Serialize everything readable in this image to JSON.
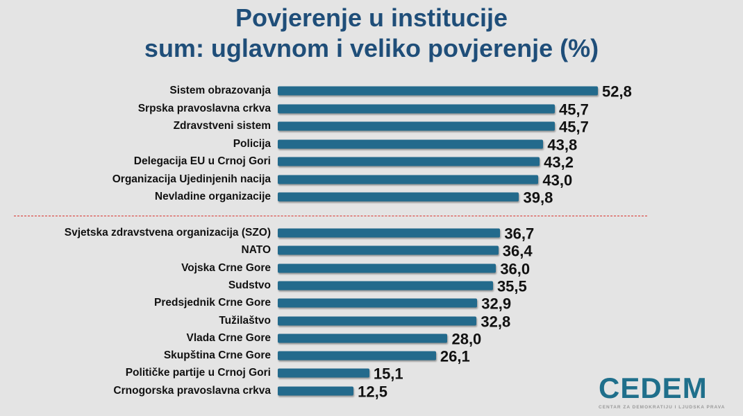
{
  "chart_data": {
    "type": "bar",
    "orientation": "horizontal",
    "title": "Povjerenje u institucije",
    "subtitle": "sum: uglavnom i veliko povjerenje (%)",
    "categories": [
      "Sistem obrazovanja",
      "Srpska pravoslavna crkva",
      "Zdravstveni sistem",
      "Policija",
      "Delegacija EU u Crnoj Gori",
      "Organizacija Ujedinjenih nacija",
      "Nevladine organizacije",
      "Svjetska zdravstvena organizacija (SZO)",
      "NATO",
      "Vojska Crne Gore",
      "Sudstvo",
      "Predsjednik Crne Gore",
      "Tužilaštvo",
      "Vlada Crne Gore",
      "Skupština Crne Gore",
      "Političke partije u Crnoj Gori",
      "Crnogorska pravoslavna crkva"
    ],
    "values": [
      52.8,
      45.7,
      45.7,
      43.8,
      43.2,
      43.0,
      39.8,
      36.7,
      36.4,
      36.0,
      35.5,
      32.9,
      32.8,
      28.0,
      26.1,
      15.1,
      12.5
    ],
    "value_labels": [
      "52,8",
      "45,7",
      "45,7",
      "43,8",
      "43,2",
      "43,0",
      "39,8",
      "36,7",
      "36,4",
      "36,0",
      "35,5",
      "32,9",
      "32,8",
      "28,0",
      "26,1",
      "15,1",
      "12,5"
    ],
    "divider_after_index": 6,
    "bar_color": "#236a8c",
    "divider_color": "#d9312b",
    "xlim": [
      0,
      52.8
    ],
    "grid": false,
    "legend": "none"
  },
  "logo": {
    "main": "CEDEM",
    "sub": "CENTAR ZA DEMOKRATIJU I LJUDSKA PRAVA"
  }
}
